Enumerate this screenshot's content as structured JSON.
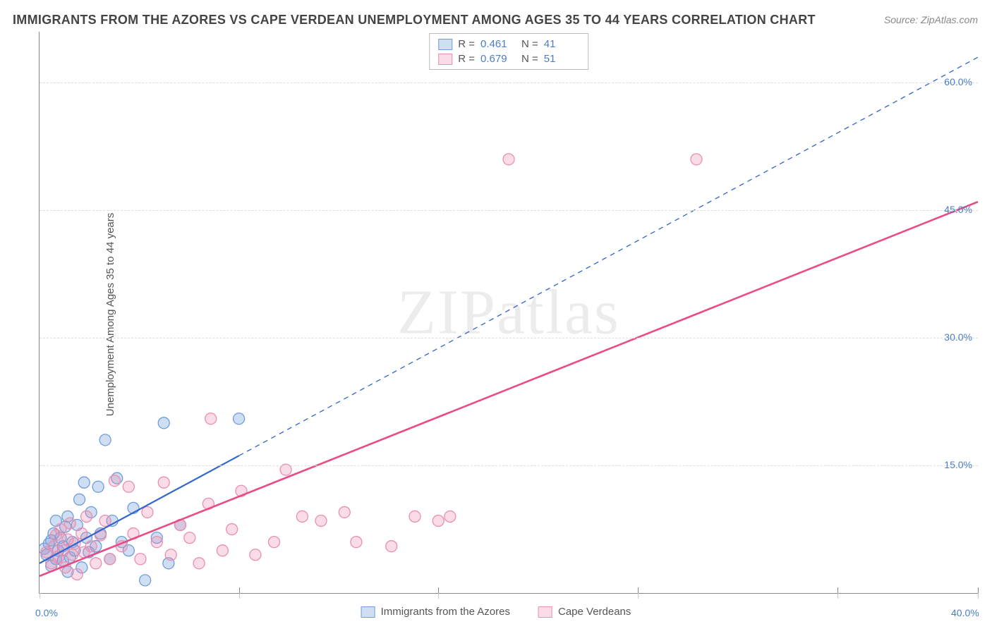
{
  "title": "IMMIGRANTS FROM THE AZORES VS CAPE VERDEAN UNEMPLOYMENT AMONG AGES 35 TO 44 YEARS CORRELATION CHART",
  "source_label": "Source: ZipAtlas.com",
  "y_axis_label": "Unemployment Among Ages 35 to 44 years",
  "watermark": "ZIPatlas",
  "chart": {
    "type": "scatter",
    "xlim": [
      0,
      40
    ],
    "ylim": [
      0,
      66
    ],
    "x_ticks": [
      0,
      8.5,
      17,
      25.5,
      34,
      40
    ],
    "x_tick_labels": {
      "0": "0.0%",
      "40": "40.0%"
    },
    "y_ticks": [
      15,
      30,
      45,
      60
    ],
    "y_tick_labels": {
      "15": "15.0%",
      "30": "30.0%",
      "45": "45.0%",
      "60": "60.0%"
    },
    "grid_color": "#dddddd",
    "axis_color": "#888888",
    "tick_label_color": "#4a7ec7",
    "background_color": "#ffffff",
    "marker_radius": 8,
    "marker_stroke_width": 1.3,
    "series": [
      {
        "id": "azores",
        "label": "Immigrants from the Azores",
        "fill_color": "rgba(120,160,220,0.35)",
        "stroke_color": "#6f9edb",
        "line_color": "#3366cc",
        "R": "0.461",
        "N": "41",
        "trend": {
          "solid_to_x": 8.5,
          "x1": 0,
          "y1": 3.5,
          "x2": 40,
          "y2": 63,
          "stroke_width": 2.2
        },
        "points": [
          [
            0.2,
            5.2
          ],
          [
            0.3,
            4.5
          ],
          [
            0.4,
            5.8
          ],
          [
            0.5,
            6.2
          ],
          [
            0.5,
            3.2
          ],
          [
            0.6,
            7.0
          ],
          [
            0.7,
            4.0
          ],
          [
            0.7,
            8.5
          ],
          [
            0.8,
            5.0
          ],
          [
            0.9,
            6.5
          ],
          [
            1.0,
            3.8
          ],
          [
            1.0,
            5.5
          ],
          [
            1.1,
            7.8
          ],
          [
            1.2,
            2.5
          ],
          [
            1.2,
            9.0
          ],
          [
            1.3,
            4.2
          ],
          [
            1.4,
            6.0
          ],
          [
            1.5,
            5.0
          ],
          [
            1.6,
            8.0
          ],
          [
            1.7,
            11.0
          ],
          [
            1.8,
            3.0
          ],
          [
            1.9,
            13.0
          ],
          [
            2.0,
            6.5
          ],
          [
            2.1,
            4.8
          ],
          [
            2.2,
            9.5
          ],
          [
            2.4,
            5.5
          ],
          [
            2.5,
            12.5
          ],
          [
            2.6,
            7.0
          ],
          [
            2.8,
            18.0
          ],
          [
            3.0,
            4.0
          ],
          [
            3.1,
            8.5
          ],
          [
            3.3,
            13.5
          ],
          [
            3.5,
            6.0
          ],
          [
            3.8,
            5.0
          ],
          [
            4.0,
            10.0
          ],
          [
            4.5,
            1.5
          ],
          [
            5.3,
            20.0
          ],
          [
            5.0,
            6.5
          ],
          [
            5.5,
            3.5
          ],
          [
            6.0,
            8.0
          ],
          [
            8.5,
            20.5
          ]
        ]
      },
      {
        "id": "cape_verdeans",
        "label": "Cape Verdeans",
        "fill_color": "rgba(235,140,175,0.30)",
        "stroke_color": "#e98fb0",
        "line_color": "#e94b86",
        "R": "0.679",
        "N": "51",
        "trend": {
          "solid_to_x": 40,
          "x1": 0,
          "y1": 2.0,
          "x2": 40,
          "y2": 46,
          "stroke_width": 2.6
        },
        "points": [
          [
            0.3,
            4.8
          ],
          [
            0.5,
            3.5
          ],
          [
            0.6,
            5.5
          ],
          [
            0.7,
            6.8
          ],
          [
            0.8,
            4.2
          ],
          [
            0.9,
            7.5
          ],
          [
            1.0,
            5.0
          ],
          [
            1.1,
            3.0
          ],
          [
            1.2,
            6.3
          ],
          [
            1.3,
            8.2
          ],
          [
            1.4,
            4.5
          ],
          [
            1.5,
            5.8
          ],
          [
            1.6,
            2.2
          ],
          [
            1.8,
            7.0
          ],
          [
            1.9,
            4.8
          ],
          [
            2.0,
            9.0
          ],
          [
            2.2,
            5.5
          ],
          [
            2.4,
            3.5
          ],
          [
            2.6,
            6.8
          ],
          [
            2.8,
            8.5
          ],
          [
            3.0,
            4.0
          ],
          [
            3.2,
            13.2
          ],
          [
            3.5,
            5.5
          ],
          [
            3.8,
            12.5
          ],
          [
            4.0,
            7.0
          ],
          [
            4.3,
            4.0
          ],
          [
            4.6,
            9.5
          ],
          [
            5.0,
            6.0
          ],
          [
            5.3,
            13.0
          ],
          [
            5.6,
            4.5
          ],
          [
            6.0,
            8.0
          ],
          [
            6.4,
            6.5
          ],
          [
            6.8,
            3.5
          ],
          [
            7.2,
            10.5
          ],
          [
            7.3,
            20.5
          ],
          [
            7.8,
            5.0
          ],
          [
            8.2,
            7.5
          ],
          [
            8.6,
            12.0
          ],
          [
            9.2,
            4.5
          ],
          [
            10.0,
            6.0
          ],
          [
            10.5,
            14.5
          ],
          [
            11.2,
            9.0
          ],
          [
            12.0,
            8.5
          ],
          [
            13.0,
            9.5
          ],
          [
            13.5,
            6.0
          ],
          [
            15.0,
            5.5
          ],
          [
            16.0,
            9.0
          ],
          [
            17.0,
            8.5
          ],
          [
            17.5,
            9.0
          ],
          [
            20.0,
            51.0
          ],
          [
            28.0,
            51.0
          ]
        ]
      }
    ]
  },
  "stats_legend": {
    "r_label": "R =",
    "n_label": "N ="
  }
}
